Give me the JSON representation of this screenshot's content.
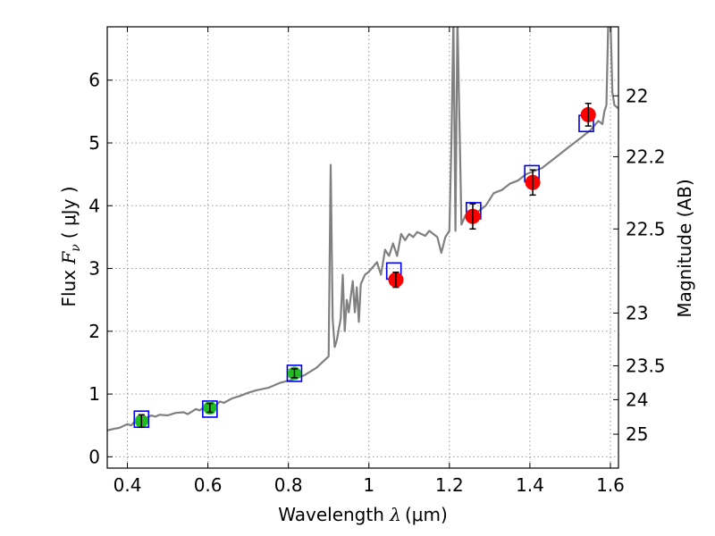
{
  "chart_data": {
    "type": "scatter",
    "xlabel_prefix": "Wavelength  ",
    "xlabel_symbol": "λ",
    "xlabel_unit": "(μm)",
    "ylabel_prefix": "Flux  ",
    "ylabel_symbol": "F",
    "ylabel_subscript": "ν",
    "ylabel_unit": "( μJy )",
    "y2label": "Magnitude (AB)",
    "xlim": [
      0.35,
      1.62
    ],
    "ylim": [
      -0.18,
      6.85
    ],
    "grid": true,
    "xticks": [
      0.4,
      0.6,
      0.8,
      1.0,
      1.2,
      1.4,
      1.6
    ],
    "xtick_labels": [
      "0.4",
      "0.6",
      "0.8",
      "1",
      "1.2",
      "1.4",
      "1.6"
    ],
    "yticks": [
      0,
      1,
      2,
      3,
      4,
      5,
      6
    ],
    "ytick_labels": [
      "0",
      "1",
      "2",
      "3",
      "4",
      "5",
      "6"
    ],
    "y2ticks": [
      {
        "label": "22",
        "flux": 5.75
      },
      {
        "label": "22.2",
        "flux": 4.78
      },
      {
        "label": "22.5",
        "flux": 3.63
      },
      {
        "label": "23",
        "flux": 2.29
      },
      {
        "label": "23.5",
        "flux": 1.45
      },
      {
        "label": "24",
        "flux": 0.91
      },
      {
        "label": "25",
        "flux": 0.36
      }
    ],
    "colors": {
      "spectrum": "#808080",
      "optical": "#22bb22",
      "nir": "#ff0000",
      "model": "#0000ee",
      "errorbar": "#000000",
      "grid": "#999999"
    },
    "series": [
      {
        "name": "SED model spectrum",
        "type": "line",
        "x": [
          0.35,
          0.37,
          0.38,
          0.4,
          0.41,
          0.42,
          0.43,
          0.44,
          0.45,
          0.46,
          0.47,
          0.48,
          0.5,
          0.52,
          0.54,
          0.55,
          0.56,
          0.57,
          0.58,
          0.59,
          0.6,
          0.61,
          0.62,
          0.63,
          0.64,
          0.66,
          0.68,
          0.7,
          0.72,
          0.75,
          0.78,
          0.81,
          0.84,
          0.87,
          0.9,
          0.905,
          0.91,
          0.915,
          0.92,
          0.93,
          0.935,
          0.94,
          0.945,
          0.95,
          0.96,
          0.965,
          0.97,
          0.975,
          0.98,
          0.99,
          1.0,
          1.02,
          1.03,
          1.04,
          1.05,
          1.06,
          1.07,
          1.08,
          1.09,
          1.1,
          1.11,
          1.12,
          1.13,
          1.14,
          1.15,
          1.16,
          1.17,
          1.18,
          1.19,
          1.2,
          1.205,
          1.21,
          1.215,
          1.22,
          1.23,
          1.24,
          1.25,
          1.27,
          1.29,
          1.31,
          1.33,
          1.35,
          1.37,
          1.39,
          1.41,
          1.43,
          1.45,
          1.47,
          1.49,
          1.51,
          1.53,
          1.55,
          1.57,
          1.58,
          1.585,
          1.59,
          1.595,
          1.6,
          1.605,
          1.61,
          1.62
        ],
        "y": [
          0.42,
          0.45,
          0.46,
          0.52,
          0.5,
          0.58,
          0.6,
          0.62,
          0.63,
          0.66,
          0.64,
          0.67,
          0.66,
          0.7,
          0.71,
          0.68,
          0.72,
          0.76,
          0.74,
          0.79,
          0.78,
          0.85,
          0.82,
          0.88,
          0.86,
          0.93,
          0.97,
          1.02,
          1.06,
          1.1,
          1.18,
          1.23,
          1.3,
          1.42,
          1.6,
          4.65,
          2.2,
          1.75,
          1.85,
          2.2,
          2.9,
          2.0,
          2.5,
          2.3,
          2.8,
          2.3,
          2.7,
          2.15,
          2.75,
          2.9,
          2.95,
          3.1,
          2.9,
          3.3,
          3.2,
          3.4,
          3.2,
          3.55,
          3.45,
          3.55,
          3.5,
          3.58,
          3.55,
          3.52,
          3.6,
          3.55,
          3.5,
          3.25,
          3.5,
          3.6,
          5.0,
          7.0,
          3.6,
          7.0,
          3.7,
          3.85,
          3.8,
          3.9,
          4.0,
          4.2,
          4.25,
          4.35,
          4.4,
          4.5,
          4.55,
          4.6,
          4.7,
          4.8,
          4.9,
          5.0,
          5.1,
          5.2,
          5.35,
          5.3,
          5.5,
          5.6,
          7.0,
          7.0,
          5.8,
          5.6,
          5.55
        ]
      },
      {
        "name": "optical photometry",
        "type": "scatter",
        "x": [
          0.435,
          0.605,
          0.815
        ],
        "y": [
          0.57,
          0.78,
          1.33
        ],
        "err": [
          0.1,
          0.07,
          0.07
        ]
      },
      {
        "name": "NIR photometry",
        "type": "scatter",
        "x": [
          1.067,
          1.258,
          1.407,
          1.545
        ],
        "y": [
          2.82,
          3.83,
          4.37,
          5.45
        ],
        "err": [
          0.12,
          0.2,
          0.2,
          0.18
        ]
      },
      {
        "name": "model synthetic photometry",
        "type": "scatter",
        "marker": "square",
        "x": [
          0.435,
          0.605,
          0.815,
          1.062,
          1.26,
          1.405,
          1.54
        ],
        "y": [
          0.6,
          0.76,
          1.33,
          2.96,
          3.92,
          4.51,
          5.31
        ]
      }
    ]
  }
}
